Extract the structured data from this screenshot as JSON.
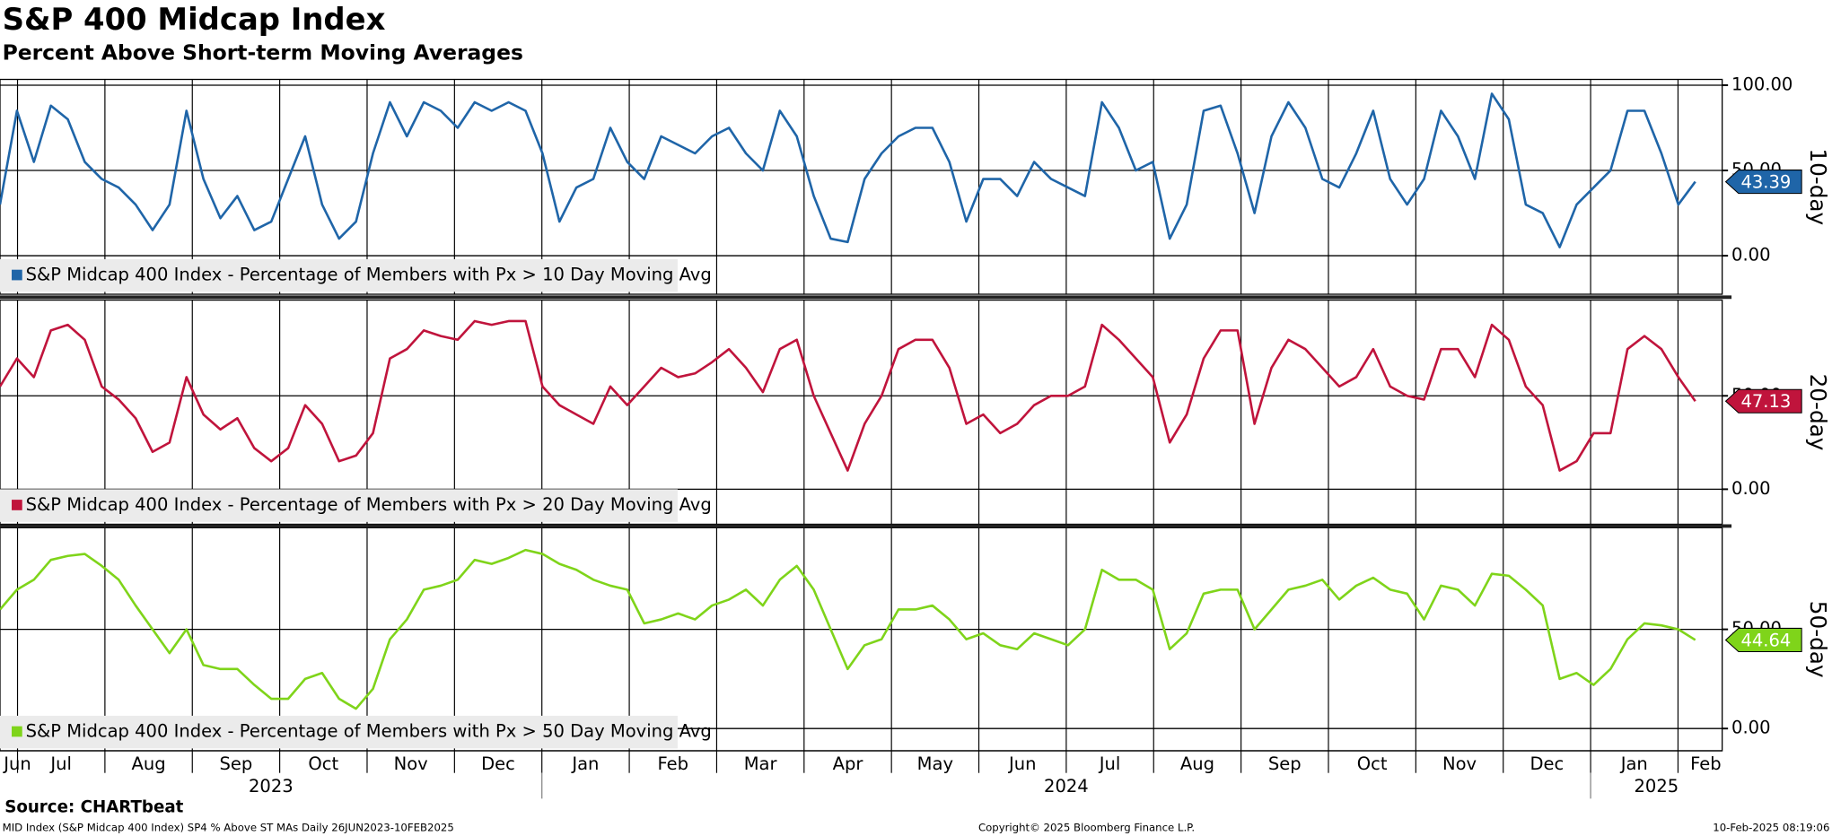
{
  "title": "S&P 400 Midcap Index",
  "subtitle": "Percent Above Short-term Moving Averages",
  "x_axis": {
    "categories": [
      "Jun",
      "Jul",
      "Aug",
      "Sep",
      "Oct",
      "Nov",
      "Dec",
      "Jan",
      "Feb",
      "Mar",
      "Apr",
      "May",
      "Jun",
      "Jul",
      "Aug",
      "Sep",
      "Oct",
      "Nov",
      "Dec",
      "Jan",
      "Feb"
    ],
    "years": [
      {
        "label": "2023",
        "months": [
          0,
          6
        ]
      },
      {
        "label": "2024",
        "months": [
          7,
          18
        ]
      },
      {
        "label": "2025",
        "months": [
          19,
          20
        ]
      }
    ]
  },
  "chart_data": [
    {
      "type": "line",
      "y_label": "10-day",
      "ylim": [
        -22.6,
        103.4
      ],
      "yticks": [
        {
          "value": 100,
          "label": "100.00"
        },
        {
          "value": 50,
          "label": "50.00"
        },
        {
          "value": 0,
          "label": "0.00"
        }
      ],
      "grid": true,
      "series": [
        {
          "name": "S&P Midcap 400 Index - Percentage of Members with Px > 10 Day Moving Avg",
          "color": "#1f65a8",
          "values": [
            30,
            85,
            55,
            88,
            80,
            55,
            45,
            40,
            30,
            15,
            30,
            85,
            45,
            22,
            35,
            15,
            20,
            45,
            70,
            30,
            10,
            20,
            60,
            90,
            70,
            90,
            85,
            75,
            90,
            85,
            90,
            85,
            60,
            20,
            40,
            45,
            75,
            55,
            45,
            70,
            65,
            60,
            70,
            75,
            60,
            50,
            85,
            70,
            35,
            10,
            8,
            45,
            60,
            70,
            75,
            75,
            55,
            20,
            45,
            45,
            35,
            55,
            45,
            40,
            35,
            90,
            75,
            50,
            55,
            10,
            30,
            85,
            88,
            60,
            25,
            70,
            90,
            75,
            45,
            40,
            60,
            85,
            45,
            30,
            45,
            85,
            70,
            45,
            95,
            80,
            30,
            25,
            5,
            30,
            40,
            50,
            85,
            85,
            60,
            30,
            43.39
          ]
        }
      ]
    },
    {
      "type": "line",
      "y_label": "20-day",
      "ylim": [
        -18.75,
        101.25
      ],
      "yticks": [
        {
          "value": 50,
          "label": "50.00"
        },
        {
          "value": 0,
          "label": "0.00"
        }
      ],
      "grid": true,
      "series": [
        {
          "name": "S&P Midcap 400 Index - Percentage of Members with Px > 20 Day Moving Avg",
          "color": "#c0143c",
          "values": [
            55,
            70,
            60,
            85,
            88,
            80,
            55,
            48,
            38,
            20,
            25,
            60,
            40,
            32,
            38,
            22,
            15,
            22,
            45,
            35,
            15,
            18,
            30,
            70,
            75,
            85,
            82,
            80,
            90,
            88,
            90,
            90,
            55,
            45,
            40,
            35,
            55,
            45,
            55,
            65,
            60,
            62,
            68,
            75,
            65,
            52,
            75,
            80,
            50,
            30,
            10,
            35,
            50,
            75,
            80,
            80,
            65,
            35,
            40,
            30,
            35,
            45,
            50,
            50,
            55,
            88,
            80,
            70,
            60,
            25,
            40,
            70,
            85,
            85,
            35,
            65,
            80,
            75,
            65,
            55,
            60,
            75,
            55,
            50,
            48,
            75,
            75,
            60,
            88,
            80,
            55,
            45,
            10,
            15,
            30,
            30,
            75,
            82,
            75,
            60,
            47.13
          ]
        }
      ]
    },
    {
      "type": "line",
      "y_label": "50-day",
      "ylim": [
        -11.2,
        101.2
      ],
      "yticks": [
        {
          "value": 50,
          "label": "50.00"
        },
        {
          "value": 0,
          "label": "0.00"
        }
      ],
      "grid": true,
      "series": [
        {
          "name": "S&P Midcap 400 Index - Percentage of Members with Px > 50 Day Moving Avg",
          "color": "#7fd41a",
          "values": [
            60,
            70,
            75,
            85,
            87,
            88,
            82,
            75,
            62,
            50,
            38,
            50,
            32,
            30,
            30,
            22,
            15,
            15,
            25,
            28,
            15,
            10,
            20,
            45,
            55,
            70,
            72,
            75,
            85,
            83,
            86,
            90,
            88,
            83,
            80,
            75,
            72,
            70,
            53,
            55,
            58,
            55,
            62,
            65,
            70,
            62,
            75,
            82,
            70,
            50,
            30,
            42,
            45,
            60,
            60,
            62,
            55,
            45,
            48,
            42,
            40,
            48,
            45,
            42,
            50,
            80,
            75,
            75,
            70,
            40,
            48,
            68,
            70,
            70,
            50,
            60,
            70,
            72,
            75,
            65,
            72,
            76,
            70,
            68,
            55,
            72,
            70,
            62,
            78,
            77,
            70,
            62,
            25,
            28,
            22,
            30,
            45,
            53,
            52,
            50,
            44.64
          ]
        }
      ]
    }
  ],
  "source": "Source: CHARTbeat",
  "footer": {
    "left": "MID Index (S&P Midcap 400 Index) SP4 % Above ST MAs  Daily 26JUN2023-10FEB2025",
    "center": "Copyright© 2025 Bloomberg Finance L.P.",
    "right": "10-Feb-2025 08:19:06"
  }
}
